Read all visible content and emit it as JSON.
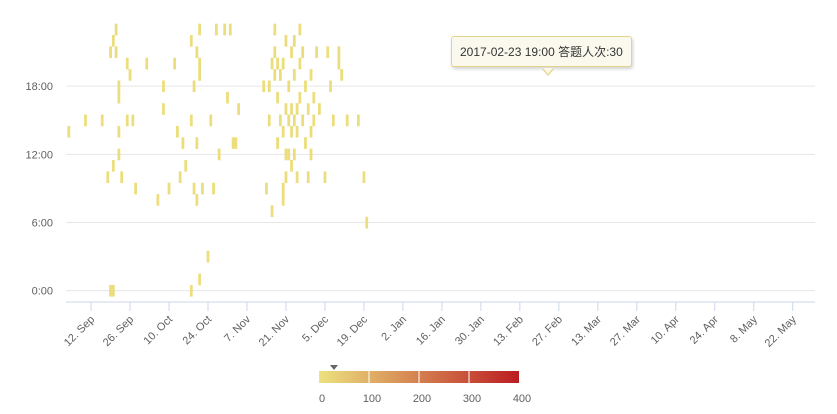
{
  "chart_data": {
    "type": "heatmap",
    "title": "",
    "xlabel": "",
    "ylabel": "",
    "x_type": "datetime",
    "xlim": [
      "2016-09-03",
      "2017-05-30"
    ],
    "ylim": [
      -1,
      24
    ],
    "x_ticks": [
      "12. Sep",
      "26. Sep",
      "10. Oct",
      "24. Oct",
      "7. Nov",
      "21. Nov",
      "5. Dec",
      "19. Dec",
      "2. Jan",
      "16. Jan",
      "30. Jan",
      "13. Feb",
      "27. Feb",
      "13. Mar",
      "27. Mar",
      "10. Apr",
      "24. Apr",
      "8. May",
      "22. May"
    ],
    "x_tick_dates": [
      "2016-09-12",
      "2016-09-26",
      "2016-10-10",
      "2016-10-24",
      "2016-11-07",
      "2016-11-21",
      "2016-12-05",
      "2016-12-19",
      "2017-01-02",
      "2017-01-16",
      "2017-01-30",
      "2017-02-13",
      "2017-02-27",
      "2017-03-13",
      "2017-03-27",
      "2017-04-10",
      "2017-04-24",
      "2017-05-08",
      "2017-05-22"
    ],
    "y_ticks": [
      "0:00",
      "6:00",
      "12:00",
      "18:00"
    ],
    "y_tick_values": [
      0,
      6,
      12,
      18
    ],
    "grid": true,
    "color_axis": {
      "min": 0,
      "max": 400,
      "labels": [
        "0",
        "100",
        "200",
        "300",
        "400"
      ],
      "label_values": [
        0,
        100,
        200,
        300,
        400
      ],
      "min_color": "#ede27e",
      "max_color": "#bb1d21",
      "marker_value": 30
    },
    "tooltip": {
      "date": "2017-02-23",
      "hour": 19,
      "text": "2017-02-23 19:00 答题人次:30"
    },
    "points": [
      [
        "2016-09-04",
        14,
        8
      ],
      [
        "2016-09-10",
        15,
        8
      ],
      [
        "2016-09-16",
        15,
        8
      ],
      [
        "2016-09-18",
        10,
        8
      ],
      [
        "2016-09-19",
        0,
        12
      ],
      [
        "2016-09-19",
        21,
        10
      ],
      [
        "2016-09-20",
        0,
        12
      ],
      [
        "2016-09-20",
        22,
        10
      ],
      [
        "2016-09-20",
        11,
        8
      ],
      [
        "2016-09-21",
        21,
        10
      ],
      [
        "2016-09-21",
        23,
        10
      ],
      [
        "2016-09-22",
        18,
        8
      ],
      [
        "2016-09-22",
        14,
        8
      ],
      [
        "2016-09-22",
        17,
        8
      ],
      [
        "2016-09-22",
        12,
        8
      ],
      [
        "2016-09-23",
        10,
        8
      ],
      [
        "2016-09-25",
        20,
        8
      ],
      [
        "2016-09-25",
        15,
        8
      ],
      [
        "2016-09-26",
        19,
        8
      ],
      [
        "2016-09-27",
        15,
        8
      ],
      [
        "2016-09-28",
        9,
        8
      ],
      [
        "2016-10-02",
        20,
        8
      ],
      [
        "2016-10-06",
        8,
        8
      ],
      [
        "2016-10-08",
        18,
        8
      ],
      [
        "2016-10-08",
        16,
        8
      ],
      [
        "2016-10-10",
        9,
        8
      ],
      [
        "2016-10-12",
        20,
        8
      ],
      [
        "2016-10-13",
        14,
        8
      ],
      [
        "2016-10-14",
        10,
        8
      ],
      [
        "2016-10-15",
        13,
        8
      ],
      [
        "2016-10-16",
        11,
        8
      ],
      [
        "2016-10-18",
        0,
        8
      ],
      [
        "2016-10-18",
        22,
        10
      ],
      [
        "2016-10-18",
        15,
        8
      ],
      [
        "2016-10-19",
        18,
        10
      ],
      [
        "2016-10-19",
        9,
        8
      ],
      [
        "2016-10-20",
        8,
        8
      ],
      [
        "2016-10-20",
        21,
        10
      ],
      [
        "2016-10-20",
        13,
        8
      ],
      [
        "2016-10-21",
        23,
        8
      ],
      [
        "2016-10-21",
        20,
        10
      ],
      [
        "2016-10-21",
        19,
        8
      ],
      [
        "2016-10-21",
        1,
        8
      ],
      [
        "2016-10-22",
        9,
        8
      ],
      [
        "2016-10-24",
        3,
        8
      ],
      [
        "2016-10-25",
        15,
        8
      ],
      [
        "2016-10-26",
        9,
        8
      ],
      [
        "2016-10-27",
        23,
        8
      ],
      [
        "2016-10-28",
        12,
        8
      ],
      [
        "2016-10-30",
        23,
        8
      ],
      [
        "2016-10-31",
        17,
        8
      ],
      [
        "2016-11-01",
        23,
        8
      ],
      [
        "2016-11-02",
        13,
        8
      ],
      [
        "2016-11-03",
        13,
        8
      ],
      [
        "2016-11-04",
        16,
        8
      ],
      [
        "2016-11-13",
        18,
        8
      ],
      [
        "2016-11-14",
        9,
        8
      ],
      [
        "2016-11-15",
        15,
        8
      ],
      [
        "2016-11-15",
        18,
        10
      ],
      [
        "2016-11-16",
        20,
        10
      ],
      [
        "2016-11-16",
        7,
        8
      ],
      [
        "2016-11-17",
        19,
        10
      ],
      [
        "2016-11-17",
        21,
        12
      ],
      [
        "2016-11-17",
        23,
        8
      ],
      [
        "2016-11-18",
        20,
        10
      ],
      [
        "2016-11-18",
        17,
        8
      ],
      [
        "2016-11-18",
        13,
        10
      ],
      [
        "2016-11-19",
        19,
        10
      ],
      [
        "2016-11-19",
        15,
        8
      ],
      [
        "2016-11-20",
        14,
        10
      ],
      [
        "2016-11-20",
        9,
        8
      ],
      [
        "2016-11-20",
        20,
        10
      ],
      [
        "2016-11-20",
        8,
        8
      ],
      [
        "2016-11-21",
        22,
        10
      ],
      [
        "2016-11-21",
        12,
        10
      ],
      [
        "2016-11-21",
        10,
        10
      ],
      [
        "2016-11-21",
        16,
        8
      ],
      [
        "2016-11-22",
        18,
        10
      ],
      [
        "2016-11-22",
        15,
        10
      ],
      [
        "2016-11-22",
        12,
        8
      ],
      [
        "2016-11-23",
        16,
        10
      ],
      [
        "2016-11-23",
        14,
        12
      ],
      [
        "2016-11-23",
        21,
        10
      ],
      [
        "2016-11-23",
        11,
        8
      ],
      [
        "2016-11-24",
        22,
        10
      ],
      [
        "2016-11-24",
        15,
        12
      ],
      [
        "2016-11-24",
        12,
        10
      ],
      [
        "2016-11-24",
        19,
        8
      ],
      [
        "2016-11-25",
        16,
        12
      ],
      [
        "2016-11-25",
        14,
        10
      ],
      [
        "2016-11-25",
        10,
        8
      ],
      [
        "2016-11-26",
        17,
        10
      ],
      [
        "2016-11-26",
        20,
        8
      ],
      [
        "2016-11-26",
        23,
        8
      ],
      [
        "2016-11-27",
        15,
        10
      ],
      [
        "2016-11-27",
        21,
        10
      ],
      [
        "2016-11-28",
        18,
        8
      ],
      [
        "2016-11-28",
        13,
        8
      ],
      [
        "2016-11-29",
        10,
        8
      ],
      [
        "2016-11-29",
        16,
        8
      ],
      [
        "2016-11-30",
        12,
        10
      ],
      [
        "2016-11-30",
        14,
        10
      ],
      [
        "2016-11-30",
        19,
        8
      ],
      [
        "2016-12-01",
        15,
        8
      ],
      [
        "2016-12-01",
        17,
        8
      ],
      [
        "2016-12-02",
        21,
        8
      ],
      [
        "2016-12-03",
        16,
        8
      ],
      [
        "2016-12-05",
        10,
        8
      ],
      [
        "2016-12-06",
        21,
        8
      ],
      [
        "2016-12-07",
        18,
        8
      ],
      [
        "2016-12-08",
        15,
        8
      ],
      [
        "2016-12-10",
        20,
        8
      ],
      [
        "2016-12-10",
        21,
        10
      ],
      [
        "2016-12-11",
        19,
        10
      ],
      [
        "2016-12-13",
        15,
        8
      ],
      [
        "2016-12-17",
        15,
        8
      ],
      [
        "2016-12-19",
        10,
        8
      ],
      [
        "2016-12-20",
        6,
        8
      ]
    ]
  }
}
